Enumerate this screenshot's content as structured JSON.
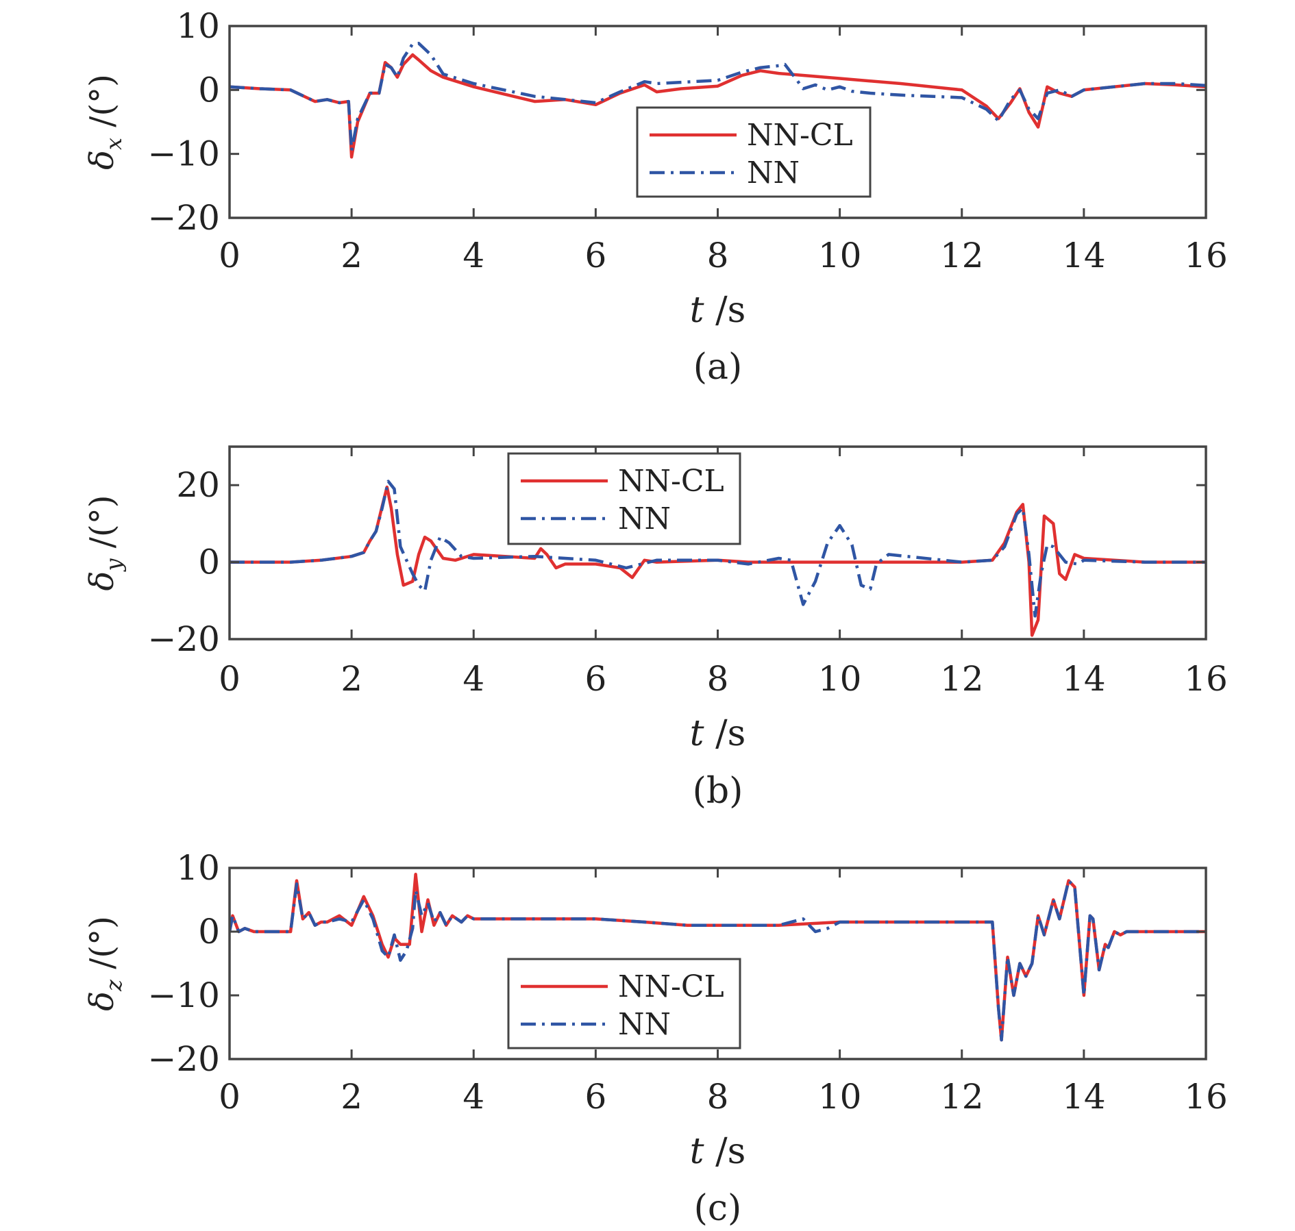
{
  "colors": {
    "nncl": "#e03030",
    "nn": "#2f55a4",
    "axis": "#444444"
  },
  "legend": {
    "series1": "NN-CL",
    "series2": "NN"
  },
  "chart_data": [
    {
      "type": "line",
      "caption": "(a)",
      "ylabel_symbol": "δ",
      "ylabel_sub": "x",
      "ylabel_unit": "/(°)",
      "xlabel_symbol": "t",
      "xlabel_unit": "/s",
      "xlim": [
        0,
        16
      ],
      "ylim": [
        -20,
        10
      ],
      "xticks": [
        0,
        2,
        4,
        6,
        8,
        10,
        12,
        14,
        16
      ],
      "yticks": [
        -20,
        -10,
        0,
        10
      ],
      "yticklabels": [
        "−20",
        "−10",
        "0",
        "10"
      ],
      "legend_position": "center",
      "series": [
        {
          "name": "NN-CL",
          "style": "solid",
          "x": [
            0,
            0.5,
            1.0,
            1.4,
            1.6,
            1.8,
            1.95,
            2.0,
            2.1,
            2.3,
            2.45,
            2.55,
            2.65,
            2.75,
            2.85,
            3.0,
            3.1,
            3.3,
            3.5,
            4.0,
            5.0,
            5.5,
            6.0,
            6.4,
            6.8,
            7.0,
            7.4,
            8.0,
            8.4,
            8.7,
            9.0,
            9.5,
            10.0,
            11.0,
            12.0,
            12.4,
            12.6,
            12.8,
            12.95,
            13.1,
            13.25,
            13.4,
            13.6,
            13.8,
            14.0,
            15.0,
            15.5,
            16.0
          ],
          "y": [
            0.5,
            0.2,
            0.0,
            -1.8,
            -1.5,
            -2.0,
            -1.8,
            -10.5,
            -5.0,
            -0.5,
            -0.5,
            4.3,
            3.5,
            2.0,
            4.0,
            5.5,
            4.7,
            3.0,
            2.0,
            0.5,
            -1.8,
            -1.5,
            -2.3,
            -0.5,
            0.8,
            -0.3,
            0.2,
            0.6,
            2.3,
            3.0,
            2.6,
            2.2,
            1.8,
            1.0,
            0.0,
            -2.5,
            -4.5,
            -2.0,
            0.2,
            -3.5,
            -5.8,
            0.5,
            -0.5,
            -1.0,
            0.0,
            1.0,
            0.8,
            0.5
          ]
        },
        {
          "name": "NN",
          "style": "dashdot",
          "x": [
            0,
            0.5,
            1.0,
            1.4,
            1.6,
            1.8,
            1.95,
            2.0,
            2.1,
            2.3,
            2.45,
            2.55,
            2.65,
            2.75,
            2.85,
            3.0,
            3.1,
            3.3,
            3.5,
            4.0,
            5.0,
            5.5,
            6.0,
            6.4,
            6.8,
            7.0,
            7.4,
            8.0,
            8.4,
            8.7,
            9.0,
            9.1,
            9.3,
            9.4,
            9.6,
            9.8,
            10.0,
            10.2,
            10.5,
            11.0,
            12.0,
            12.4,
            12.6,
            12.8,
            12.95,
            13.1,
            13.25,
            13.4,
            13.6,
            13.8,
            14.0,
            15.0,
            15.5,
            16.0
          ],
          "y": [
            0.5,
            0.2,
            0.0,
            -1.8,
            -1.5,
            -2.0,
            -1.8,
            -9.5,
            -4.5,
            -0.5,
            -0.5,
            4.0,
            3.5,
            2.0,
            5.0,
            7.2,
            7.3,
            5.5,
            2.5,
            1.0,
            -1.0,
            -1.5,
            -2.0,
            -0.3,
            1.3,
            1.0,
            1.2,
            1.5,
            2.8,
            3.5,
            3.8,
            4.0,
            1.5,
            0.2,
            0.8,
            0.0,
            0.5,
            -0.2,
            -0.5,
            -0.8,
            -1.2,
            -3.0,
            -4.8,
            -1.5,
            0.0,
            -3.0,
            -4.5,
            -0.5,
            0.0,
            -1.0,
            0.0,
            1.0,
            1.0,
            0.7
          ]
        }
      ]
    },
    {
      "type": "line",
      "caption": "(b)",
      "ylabel_symbol": "δ",
      "ylabel_sub": "y",
      "ylabel_unit": "/(°)",
      "xlabel_symbol": "t",
      "xlabel_unit": "/s",
      "xlim": [
        0,
        16
      ],
      "ylim": [
        -20,
        30
      ],
      "xticks": [
        0,
        2,
        4,
        6,
        8,
        10,
        12,
        14,
        16
      ],
      "yticks": [
        -20,
        0,
        20
      ],
      "yticklabels": [
        "−20",
        "0",
        "20"
      ],
      "legend_position": "top-left",
      "series": [
        {
          "name": "NN-CL",
          "style": "solid",
          "x": [
            0,
            1.0,
            1.5,
            2.0,
            2.2,
            2.3,
            2.4,
            2.5,
            2.58,
            2.65,
            2.75,
            2.85,
            3.0,
            3.1,
            3.2,
            3.3,
            3.5,
            3.7,
            4.0,
            5.0,
            5.1,
            5.2,
            5.35,
            5.5,
            6.0,
            6.4,
            6.6,
            6.8,
            7.0,
            8.0,
            8.5,
            9.0,
            10.0,
            12.0,
            12.5,
            12.7,
            12.9,
            13.0,
            13.1,
            13.15,
            13.25,
            13.35,
            13.5,
            13.6,
            13.7,
            13.85,
            14.0,
            15.0,
            16.0
          ],
          "y": [
            0,
            0,
            0.5,
            1.5,
            2.5,
            5.5,
            8.0,
            14.5,
            19.5,
            14.0,
            2.0,
            -6.0,
            -5.0,
            2.0,
            6.5,
            5.5,
            1.0,
            0.5,
            2.0,
            1.0,
            3.5,
            2.0,
            -1.5,
            -0.5,
            -0.5,
            -1.5,
            -4.0,
            0.5,
            0.0,
            0.5,
            0.0,
            0.0,
            0.0,
            0.0,
            0.5,
            5.0,
            13.0,
            15.0,
            0.0,
            -19.0,
            -15.0,
            12.0,
            10.0,
            -3.0,
            -4.5,
            2.0,
            1.0,
            0.0,
            0.0
          ]
        },
        {
          "name": "NN",
          "style": "dashdot",
          "x": [
            0,
            1.0,
            1.5,
            2.0,
            2.2,
            2.3,
            2.4,
            2.5,
            2.6,
            2.7,
            2.8,
            2.9,
            3.0,
            3.1,
            3.2,
            3.3,
            3.45,
            3.6,
            3.8,
            4.0,
            5.0,
            6.0,
            6.5,
            7.0,
            8.0,
            8.5,
            9.0,
            9.2,
            9.4,
            9.6,
            9.8,
            10.0,
            10.2,
            10.35,
            10.5,
            10.6,
            10.8,
            12.0,
            12.5,
            12.7,
            12.9,
            13.0,
            13.1,
            13.2,
            13.3,
            13.4,
            13.5,
            13.7,
            13.9,
            14.0,
            15.0,
            16.0
          ],
          "y": [
            0,
            0,
            0.5,
            1.5,
            2.5,
            5.5,
            8.0,
            14.0,
            21.0,
            19.0,
            4.0,
            0.5,
            -3.0,
            -6.0,
            -7.5,
            0.5,
            6.5,
            5.0,
            1.5,
            1.0,
            1.5,
            0.5,
            -1.5,
            0.5,
            0.5,
            -0.5,
            1.0,
            0.5,
            -11.0,
            -5.0,
            5.0,
            9.5,
            4.5,
            -6.0,
            -7.0,
            -0.5,
            2.0,
            0.0,
            0.5,
            4.0,
            12.5,
            14.0,
            2.0,
            -14.0,
            -3.0,
            4.5,
            4.0,
            0.0,
            -0.5,
            0.5,
            0.0,
            0.0
          ]
        }
      ]
    },
    {
      "type": "line",
      "caption": "(c)",
      "ylabel_symbol": "δ",
      "ylabel_sub": "z",
      "ylabel_unit": "/(°)",
      "xlabel_symbol": "t",
      "xlabel_unit": "/s",
      "xlim": [
        0,
        16
      ],
      "ylim": [
        -20,
        10
      ],
      "xticks": [
        0,
        2,
        4,
        6,
        8,
        10,
        12,
        14,
        16
      ],
      "yticks": [
        -20,
        -10,
        0,
        10
      ],
      "yticklabels": [
        "−20",
        "−10",
        "0",
        "10"
      ],
      "legend_position": "bottom-left",
      "series": [
        {
          "name": "NN-CL",
          "style": "solid",
          "x": [
            0,
            0.05,
            0.15,
            0.25,
            0.4,
            1.0,
            1.1,
            1.2,
            1.3,
            1.4,
            1.5,
            1.6,
            1.8,
            2.0,
            2.2,
            2.35,
            2.5,
            2.6,
            2.7,
            2.8,
            2.95,
            3.05,
            3.15,
            3.25,
            3.35,
            3.45,
            3.55,
            3.65,
            3.8,
            3.9,
            4.0,
            4.3,
            5.0,
            6.0,
            6.8,
            7.5,
            8.0,
            8.5,
            9.0,
            10.0,
            11.0,
            12.0,
            12.4,
            12.5,
            12.6,
            12.65,
            12.75,
            12.85,
            12.95,
            13.05,
            13.15,
            13.25,
            13.35,
            13.5,
            13.6,
            13.75,
            13.85,
            14.0,
            14.1,
            14.15,
            14.25,
            14.35,
            14.4,
            14.5,
            14.6,
            14.7,
            15.0,
            16.0
          ],
          "y": [
            0,
            2.5,
            0.0,
            0.5,
            0.0,
            0.0,
            8.0,
            2.0,
            3.0,
            1.0,
            1.5,
            1.5,
            2.5,
            1.0,
            5.5,
            2.5,
            -2.0,
            -4.0,
            -1.0,
            -2.0,
            -2.0,
            9.0,
            0.0,
            5.0,
            1.0,
            3.0,
            1.0,
            2.5,
            1.5,
            2.5,
            2.0,
            2.0,
            2.0,
            2.0,
            1.5,
            1.0,
            1.0,
            1.0,
            1.0,
            1.5,
            1.5,
            1.5,
            1.5,
            1.5,
            -12.0,
            -17.0,
            -4.0,
            -10.0,
            -5.0,
            -7.0,
            -5.0,
            2.5,
            -0.5,
            5.0,
            2.0,
            8.0,
            7.0,
            -10.0,
            2.5,
            2.0,
            -6.0,
            -2.0,
            -2.5,
            0.0,
            -0.5,
            0.0,
            0.0,
            0.0
          ]
        },
        {
          "name": "NN",
          "style": "dashdot",
          "x": [
            0,
            0.05,
            0.15,
            0.25,
            0.4,
            1.0,
            1.1,
            1.2,
            1.3,
            1.4,
            1.5,
            1.6,
            1.8,
            2.0,
            2.2,
            2.35,
            2.5,
            2.6,
            2.7,
            2.8,
            2.9,
            3.0,
            3.05,
            3.15,
            3.25,
            3.35,
            3.45,
            3.55,
            3.65,
            3.8,
            3.9,
            4.0,
            4.3,
            5.0,
            6.0,
            6.8,
            7.5,
            8.0,
            8.5,
            9.0,
            9.4,
            9.6,
            9.8,
            10.0,
            10.2,
            11.0,
            12.0,
            12.4,
            12.5,
            12.6,
            12.65,
            12.75,
            12.85,
            12.95,
            13.05,
            13.15,
            13.25,
            13.35,
            13.5,
            13.6,
            13.75,
            13.85,
            14.0,
            14.1,
            14.15,
            14.25,
            14.35,
            14.4,
            14.5,
            14.6,
            14.7,
            15.0,
            16.0
          ],
          "y": [
            0,
            2.5,
            0.0,
            0.5,
            0.0,
            0.0,
            7.5,
            2.0,
            3.0,
            1.0,
            1.5,
            1.5,
            2.0,
            1.5,
            5.0,
            2.0,
            -3.0,
            -4.0,
            -0.5,
            -4.5,
            -3.0,
            0.5,
            6.5,
            2.5,
            4.5,
            1.5,
            3.0,
            1.0,
            2.5,
            1.5,
            2.5,
            2.0,
            2.0,
            2.0,
            2.0,
            1.5,
            1.0,
            1.0,
            1.0,
            1.0,
            2.0,
            0.0,
            0.5,
            1.5,
            1.5,
            1.5,
            1.5,
            1.5,
            1.5,
            -12.0,
            -17.0,
            -4.0,
            -10.0,
            -5.0,
            -7.0,
            -5.0,
            2.5,
            -0.5,
            5.0,
            2.0,
            8.0,
            7.0,
            -10.0,
            2.5,
            2.0,
            -6.0,
            -2.0,
            -2.5,
            0.0,
            -0.5,
            0.0,
            0.0,
            0.0
          ]
        }
      ]
    }
  ]
}
